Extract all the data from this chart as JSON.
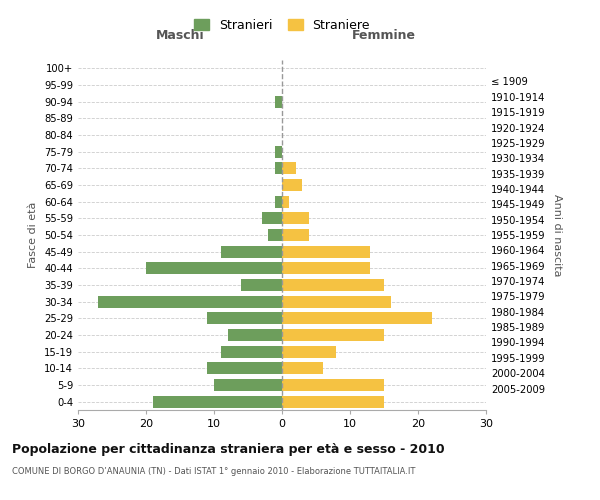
{
  "age_groups": [
    "100+",
    "95-99",
    "90-94",
    "85-89",
    "80-84",
    "75-79",
    "70-74",
    "65-69",
    "60-64",
    "55-59",
    "50-54",
    "45-49",
    "40-44",
    "35-39",
    "30-34",
    "25-29",
    "20-24",
    "15-19",
    "10-14",
    "5-9",
    "0-4"
  ],
  "birth_years": [
    "≤ 1909",
    "1910-1914",
    "1915-1919",
    "1920-1924",
    "1925-1929",
    "1930-1934",
    "1935-1939",
    "1940-1944",
    "1945-1949",
    "1950-1954",
    "1955-1959",
    "1960-1964",
    "1965-1969",
    "1970-1974",
    "1975-1979",
    "1980-1984",
    "1985-1989",
    "1990-1994",
    "1995-1999",
    "2000-2004",
    "2005-2009"
  ],
  "maschi": [
    0,
    0,
    1,
    0,
    0,
    1,
    1,
    0,
    1,
    3,
    2,
    9,
    20,
    6,
    27,
    11,
    8,
    9,
    11,
    10,
    19
  ],
  "femmine": [
    0,
    0,
    0,
    0,
    0,
    0,
    2,
    3,
    1,
    4,
    4,
    13,
    13,
    15,
    16,
    22,
    15,
    8,
    6,
    15,
    15
  ],
  "color_maschi": "#6d9e5c",
  "color_femmine": "#f5c242",
  "title": "Popolazione per cittadinanza straniera per età e sesso - 2010",
  "subtitle": "COMUNE DI BORGO D’ANAUNIA (TN) - Dati ISTAT 1° gennaio 2010 - Elaborazione TUTTAITALIA.IT",
  "xlabel_left": "Maschi",
  "xlabel_right": "Femmine",
  "ylabel_left": "Fasce di età",
  "ylabel_right": "Anni di nascita",
  "xlim": 30,
  "legend_labels": [
    "Stranieri",
    "Straniere"
  ],
  "bg_color": "#ffffff",
  "grid_color": "#cccccc"
}
